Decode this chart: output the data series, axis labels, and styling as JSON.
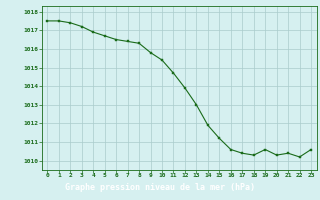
{
  "x": [
    0,
    1,
    2,
    3,
    4,
    5,
    6,
    7,
    8,
    9,
    10,
    11,
    12,
    13,
    14,
    15,
    16,
    17,
    18,
    19,
    20,
    21,
    22,
    23
  ],
  "y": [
    1017.5,
    1017.5,
    1017.4,
    1017.2,
    1016.9,
    1016.7,
    1016.5,
    1016.4,
    1016.3,
    1015.8,
    1015.4,
    1014.7,
    1013.9,
    1013.0,
    1011.9,
    1011.2,
    1010.6,
    1010.4,
    1010.3,
    1010.6,
    1010.3,
    1010.4,
    1010.2,
    1010.6
  ],
  "ylim": [
    1009.5,
    1018.3
  ],
  "yticks": [
    1010,
    1011,
    1012,
    1013,
    1014,
    1015,
    1016,
    1017,
    1018
  ],
  "xticks": [
    0,
    1,
    2,
    3,
    4,
    5,
    6,
    7,
    8,
    9,
    10,
    11,
    12,
    13,
    14,
    15,
    16,
    17,
    18,
    19,
    20,
    21,
    22,
    23
  ],
  "line_color": "#1a6b1a",
  "marker_color": "#1a6b1a",
  "bg_color": "#d6f0f0",
  "grid_color": "#aacccc",
  "xlabel": "Graphe pression niveau de la mer (hPa)",
  "xlabel_color": "#ffffff",
  "tick_color": "#1a6b1a",
  "axis_color": "#1a6b1a",
  "bottom_bar_color": "#1a6b1a",
  "figsize": [
    3.2,
    2.0
  ],
  "dpi": 100
}
